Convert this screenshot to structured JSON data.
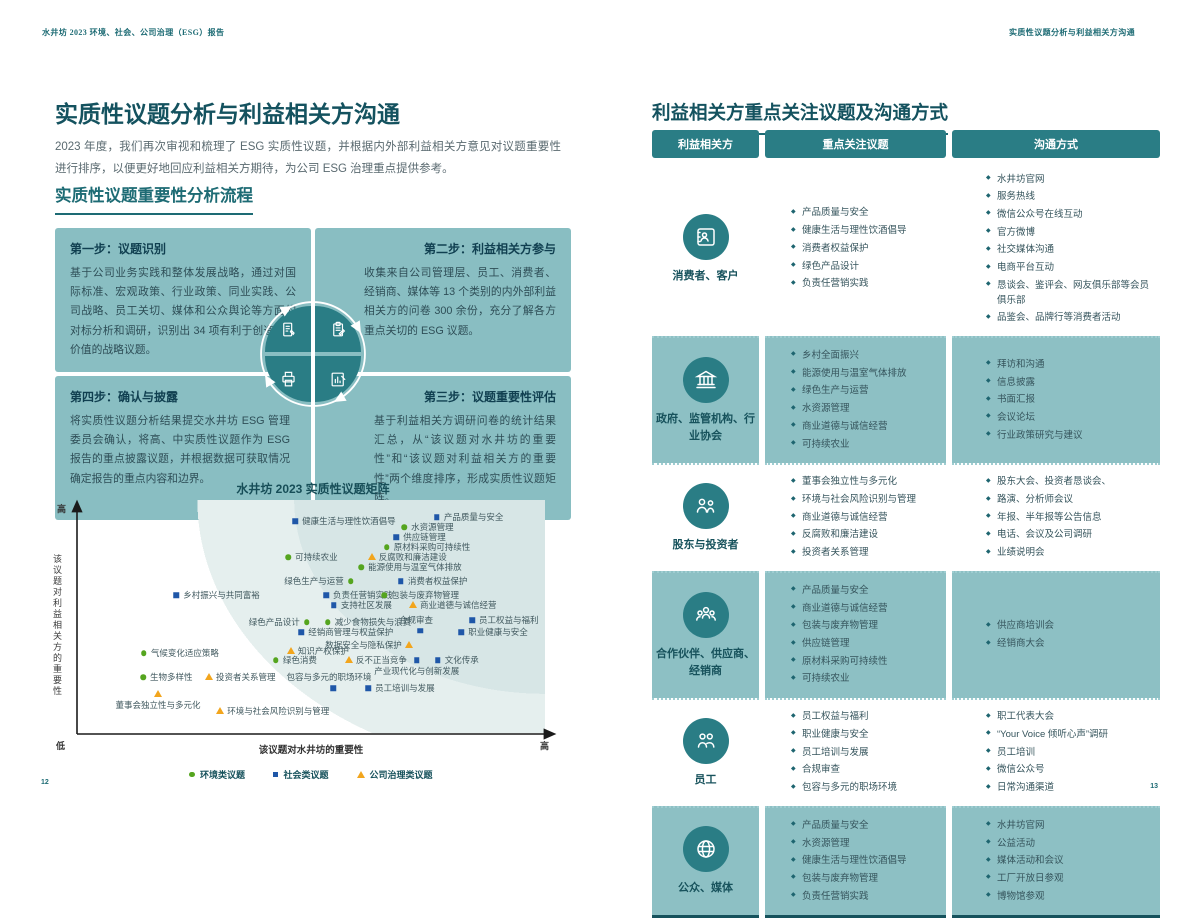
{
  "page_left": {
    "running_header": "水井坊 2023 环境、社会、公司治理（ESG）报告",
    "title": "实质性议题分析与利益相关方沟通",
    "intro": "2023 年度，我们再次审视和梳理了 ESG 实质性议题，并根据内外部利益相关方意见对议题重要性进行排序，以便更好地回应利益相关方期待，为公司 ESG 治理重点提供参考。",
    "section_heading": "实质性议题重要性分析流程",
    "steps": [
      {
        "title": "第一步：议题识别",
        "body": "基于公司业务实践和整体发展战略，通过对国际标准、宏观政策、行业政策、同业实践、公司战略、员工关切、媒体和公众舆论等方面的对标分析和调研，识别出 34 项有利于创造共享价值的战略议题。"
      },
      {
        "title": "第二步：利益相关方参与",
        "body": "收集来自公司管理层、员工、消费者、经销商、媒体等 13 个类别的内外部利益相关方的问卷 300 余份，充分了解各方重点关切的 ESG 议题。"
      },
      {
        "title": "第三步：议题重要性评估",
        "body": "基于利益相关方调研问卷的统计结果汇总，从“该议题对水井坊的重要性”和“该议题对利益相关方的重要性”两个维度排序，形成实质性议题矩阵。"
      },
      {
        "title": "第四步：确认与披露",
        "body": "将实质性议题分析结果提交水井坊 ESG 管理委员会确认，将高、中实质性议题作为 ESG 报告的重点披露议题，并根据数据可获取情况确定报告的重点内容和边界。"
      }
    ],
    "page_number": "12"
  },
  "chart_data": {
    "type": "scatter",
    "title": "水井坊 2023 实质性议题矩阵",
    "xlabel": "该议题对水井坊的重要性",
    "ylabel": "该议题对利益相关方的重要性",
    "x_axis_ends": [
      "低",
      "高"
    ],
    "y_axis_ends": [
      "低",
      "高"
    ],
    "legend": [
      {
        "label": "环境类议题",
        "cat": "E",
        "color": "#55a51f",
        "marker": "circle"
      },
      {
        "label": "社会类议题",
        "cat": "S",
        "color": "#1f57a8",
        "marker": "square"
      },
      {
        "label": "公司治理类议题",
        "cat": "G",
        "color": "#f2a51d",
        "marker": "triangle"
      }
    ],
    "points": [
      {
        "label": "健康生活与理性饮酒倡导",
        "cat": "S",
        "x": 46.6,
        "y": 91.0,
        "label_pos": "r"
      },
      {
        "label": "产品质量与安全",
        "cat": "S",
        "x": 76.9,
        "y": 92.7,
        "label_pos": "r"
      },
      {
        "label": "水资源管理",
        "cat": "E",
        "x": 69.9,
        "y": 88.4,
        "label_pos": "r"
      },
      {
        "label": "供应链管理",
        "cat": "S",
        "x": 68.2,
        "y": 84.1,
        "label_pos": "r"
      },
      {
        "label": "原材料采购可持续性",
        "cat": "E",
        "x": 66.2,
        "y": 79.8,
        "label_pos": "r"
      },
      {
        "label": "可持续农业",
        "cat": "E",
        "x": 45.1,
        "y": 75.5,
        "label_pos": "r"
      },
      {
        "label": "反腐败和廉洁建设",
        "cat": "G",
        "x": 63.0,
        "y": 75.5,
        "label_pos": "r"
      },
      {
        "label": "能源使用与温室气体排放",
        "cat": "E",
        "x": 60.7,
        "y": 71.2,
        "label_pos": "r"
      },
      {
        "label": "绿色生产与运营",
        "cat": "E",
        "x": 58.5,
        "y": 65.2,
        "label_pos": "l"
      },
      {
        "label": "消费者权益保护",
        "cat": "S",
        "x": 69.2,
        "y": 65.2,
        "label_pos": "r"
      },
      {
        "label": "乡村振兴与共同富裕",
        "cat": "S",
        "x": 21.2,
        "y": 59.2,
        "label_pos": "r"
      },
      {
        "label": "负责任营销实践",
        "cat": "S",
        "x": 53.2,
        "y": 59.2,
        "label_pos": "r"
      },
      {
        "label": "包装与废弃物管理",
        "cat": "E",
        "x": 65.6,
        "y": 59.2,
        "label_pos": "r"
      },
      {
        "label": "支持社区发展",
        "cat": "S",
        "x": 54.9,
        "y": 54.9,
        "label_pos": "r"
      },
      {
        "label": "商业道德与诚信经营",
        "cat": "G",
        "x": 71.8,
        "y": 54.9,
        "label_pos": "r"
      },
      {
        "label": "绿色产品设计",
        "cat": "E",
        "x": 49.1,
        "y": 47.6,
        "label_pos": "l"
      },
      {
        "label": "减少食物损失与浪费",
        "cat": "E",
        "x": 53.6,
        "y": 47.6,
        "label_pos": "r"
      },
      {
        "label": "员工权益与福利",
        "cat": "S",
        "x": 84.4,
        "y": 48.5,
        "label_pos": "r"
      },
      {
        "label": "合规审查",
        "cat": "S",
        "x": 73.3,
        "y": 43.8,
        "label_pos": "t"
      },
      {
        "label": "经销商管理与权益保护",
        "cat": "S",
        "x": 47.9,
        "y": 43.3,
        "label_pos": "r"
      },
      {
        "label": "职业健康与安全",
        "cat": "S",
        "x": 82.1,
        "y": 43.3,
        "label_pos": "r"
      },
      {
        "label": "数据安全与隐私保护",
        "cat": "G",
        "x": 70.9,
        "y": 37.8,
        "label_pos": "l"
      },
      {
        "label": "知识产权保护",
        "cat": "G",
        "x": 45.7,
        "y": 35.2,
        "label_pos": "r"
      },
      {
        "label": "气候变化适应策略",
        "cat": "E",
        "x": 14.3,
        "y": 34.3,
        "label_pos": "r"
      },
      {
        "label": "绿色消费",
        "cat": "E",
        "x": 42.5,
        "y": 31.3,
        "label_pos": "r"
      },
      {
        "label": "反不正当竞争",
        "cat": "G",
        "x": 58.1,
        "y": 31.3,
        "label_pos": "r"
      },
      {
        "label": "产业现代化与创新发展",
        "cat": "S",
        "x": 72.6,
        "y": 31.3,
        "label_pos": "b"
      },
      {
        "label": "文化传承",
        "cat": "S",
        "x": 77.1,
        "y": 31.3,
        "label_pos": "r"
      },
      {
        "label": "生物多样性",
        "cat": "E",
        "x": 14.1,
        "y": 24.0,
        "label_pos": "r"
      },
      {
        "label": "投资者关系管理",
        "cat": "G",
        "x": 28.2,
        "y": 24.0,
        "label_pos": "r"
      },
      {
        "label": "包容与多元的职场环境",
        "cat": "S",
        "x": 54.7,
        "y": 19.3,
        "label_pos": "t"
      },
      {
        "label": "员工培训与发展",
        "cat": "S",
        "x": 62.2,
        "y": 19.3,
        "label_pos": "r"
      },
      {
        "label": "董事会独立性与多元化",
        "cat": "G",
        "x": 17.3,
        "y": 16.7,
        "label_pos": "b"
      },
      {
        "label": "环境与社会风险识别与管理",
        "cat": "G",
        "x": 30.6,
        "y": 9.4,
        "label_pos": "r"
      }
    ]
  },
  "page_right": {
    "running_header": "实质性议题分析与利益相关方沟通",
    "title": "利益相关方重点关注议题及沟通方式",
    "table": {
      "headers": [
        "利益相关方",
        "重点关注议题",
        "沟通方式"
      ],
      "rows": [
        {
          "group": "消费者、客户",
          "icon": "contact-card",
          "alt": false,
          "topics": [
            "产品质量与安全",
            "健康生活与理性饮酒倡导",
            "消费者权益保护",
            "绿色产品设计",
            "负责任营销实践"
          ],
          "channels": [
            "水井坊官网",
            "服务热线",
            "微信公众号在线互动",
            "官方微博",
            "社交媒体沟通",
            "电商平台互动",
            "恳谈会、鉴评会、网友俱乐部等会员俱乐部",
            "品鉴会、品牌行等消费者活动"
          ]
        },
        {
          "group": "政府、监管机构、行业协会",
          "icon": "bank",
          "alt": true,
          "topics": [
            "乡村全面振兴",
            "能源使用与温室气体排放",
            "绿色生产与运营",
            "水资源管理",
            "商业道德与诚信经营",
            "可持续农业"
          ],
          "channels": [
            "拜访和沟通",
            "信息披露",
            "书面汇报",
            "会议论坛",
            "行业政策研究与建议"
          ]
        },
        {
          "group": "股东与投资者",
          "icon": "people-pair",
          "alt": false,
          "topics": [
            "董事会独立性与多元化",
            "环境与社会风险识别与管理",
            "商业道德与诚信经营",
            "反腐败和廉洁建设",
            "投资者关系管理"
          ],
          "channels": [
            "股东大会、投资者恳谈会、",
            "路演、分析师会议",
            "年报、半年报等公告信息",
            "电话、会议及公司调研",
            "业绩说明会"
          ]
        },
        {
          "group": "合作伙伴、供应商、经销商",
          "icon": "people-group",
          "alt": true,
          "topics": [
            "产品质量与安全",
            "商业道德与诚信经营",
            "包装与废弃物管理",
            "供应链管理",
            "原材料采购可持续性",
            "可持续农业"
          ],
          "channels": [
            "供应商培训会",
            "经销商大会"
          ]
        },
        {
          "group": "员工",
          "icon": "employee-pair",
          "alt": false,
          "topics": [
            "员工权益与福利",
            "职业健康与安全",
            "员工培训与发展",
            "合规审查",
            "包容与多元的职场环境"
          ],
          "channels": [
            "职工代表大会",
            "“Your Voice 倾听心声”调研",
            "员工培训",
            "微信公众号",
            "日常沟通渠道"
          ]
        },
        {
          "group": "公众、媒体",
          "icon": "globe",
          "alt": true,
          "topics": [
            "产品质量与安全",
            "水资源管理",
            "健康生活与理性饮酒倡导",
            "包装与废弃物管理",
            "负责任营销实践"
          ],
          "channels": [
            "水井坊官网",
            "公益活动",
            "媒体活动和会议",
            "工厂开放日参观",
            "博物馆参观"
          ]
        }
      ]
    },
    "page_number": "13"
  },
  "colors": {
    "teal_dark": "#1d6b74",
    "teal_header": "#2a7d85",
    "teal_row": "#8dc0c4",
    "quad_bg": "#89bec2",
    "env_green": "#55a51f",
    "social_blue": "#1f57a8",
    "governance_orange": "#f2a51d"
  }
}
